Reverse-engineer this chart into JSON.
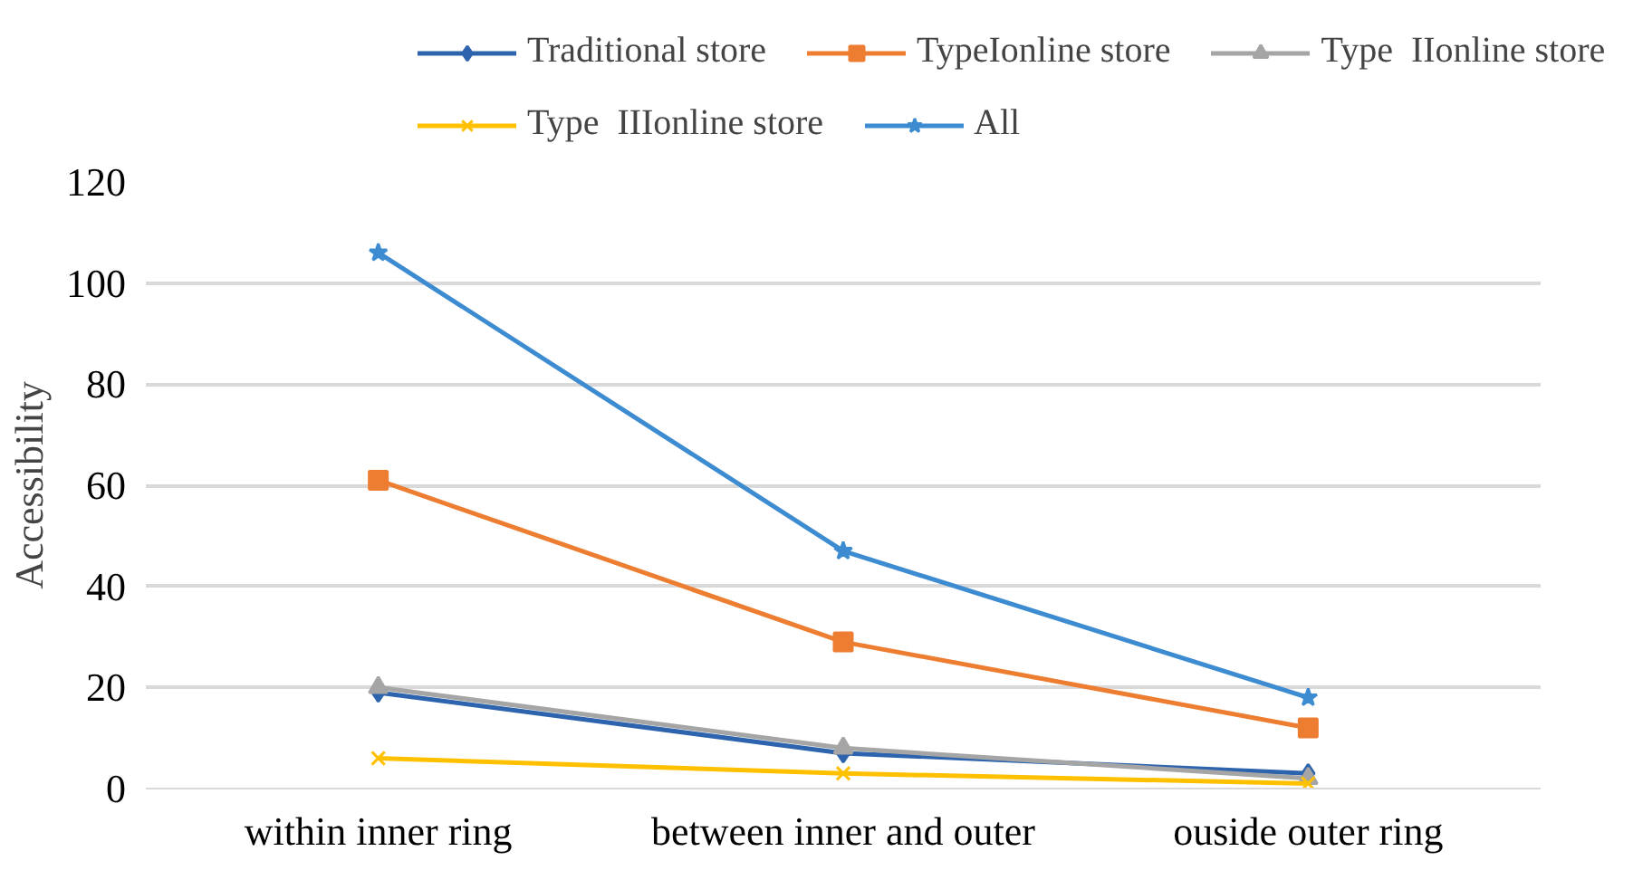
{
  "chart_data": {
    "type": "line",
    "ylabel": "Accessibility",
    "categories": [
      "within inner ring",
      "between inner and outer",
      "ouside outer ring"
    ],
    "ylim": [
      0,
      120
    ],
    "yticks": [
      0,
      20,
      40,
      60,
      80,
      100,
      120
    ],
    "grid": "y",
    "legend": "top",
    "line_style": "solid",
    "series": [
      {
        "name": "Traditional store",
        "color": "#2e64ad",
        "marker": "diamond",
        "values": [
          19,
          7,
          3
        ]
      },
      {
        "name": "TypeIonline store",
        "color": "#ed7d31",
        "marker": "square",
        "values": [
          61,
          29,
          12
        ]
      },
      {
        "name": "Type  IIonline store",
        "color": "#a5a5a5",
        "marker": "triangle",
        "values": [
          20,
          8,
          2
        ]
      },
      {
        "name": "Type  IIIonline store",
        "color": "#ffc000",
        "marker": "cross",
        "values": [
          6,
          3,
          1
        ]
      },
      {
        "name": "All",
        "color": "#3d8bd0",
        "marker": "star",
        "values": [
          106,
          47,
          18
        ]
      }
    ]
  }
}
